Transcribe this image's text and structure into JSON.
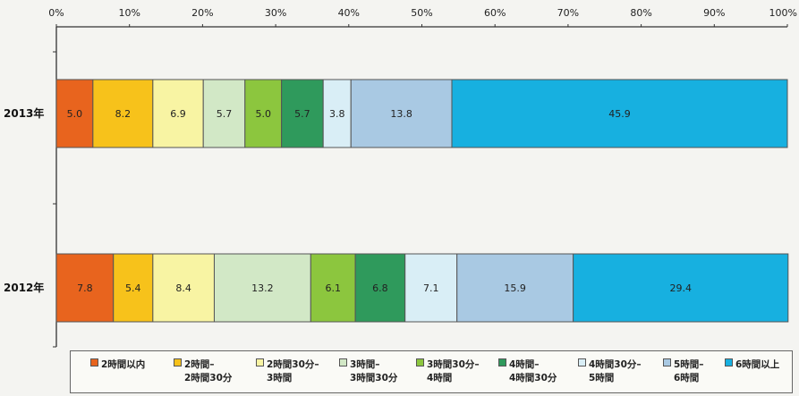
{
  "chart_data": {
    "type": "bar",
    "orientation": "horizontal",
    "stacked": true,
    "xlim": [
      0,
      100
    ],
    "x_ticks": [
      "0%",
      "10%",
      "20%",
      "30%",
      "40%",
      "50%",
      "60%",
      "70%",
      "80%",
      "90%",
      "100%"
    ],
    "categories": [
      "2013年",
      "2012年"
    ],
    "series": [
      {
        "name": "2時間以内",
        "color": "#e8641e",
        "values": [
          5.0,
          7.8
        ],
        "labels": [
          "5.0",
          "7.8"
        ]
      },
      {
        "name": "2時間–2時間30分",
        "color": "#f7c21b",
        "values": [
          8.2,
          5.4
        ],
        "labels": [
          "8.2",
          "5.4"
        ]
      },
      {
        "name": "2時間30分–3時間",
        "color": "#f8f4a3",
        "values": [
          6.9,
          8.4
        ],
        "labels": [
          "6.9",
          "8.4"
        ]
      },
      {
        "name": "3時間–3時間30分",
        "color": "#d2e8c6",
        "values": [
          5.7,
          13.2
        ],
        "labels": [
          "5.7",
          "13.2"
        ]
      },
      {
        "name": "3時間30分–4時間",
        "color": "#8cc63e",
        "values": [
          5.0,
          6.1
        ],
        "labels": [
          "5.0",
          "6.1"
        ]
      },
      {
        "name": "4時間–4時間30分",
        "color": "#2f9a5c",
        "values": [
          5.7,
          6.8
        ],
        "labels": [
          "5.7",
          "6.8"
        ]
      },
      {
        "name": "4時間30分–5時間",
        "color": "#d9eef6",
        "values": [
          3.8,
          7.1
        ],
        "labels": [
          "3.8",
          "7.1"
        ]
      },
      {
        "name": "5時間–6時間",
        "color": "#a9c9e3",
        "values": [
          13.8,
          15.9
        ],
        "labels": [
          "13.8",
          "15.9"
        ]
      },
      {
        "name": "6時間以上",
        "color": "#17b0e0",
        "values": [
          45.9,
          29.4
        ],
        "labels": [
          "45.9",
          "29.4"
        ]
      }
    ],
    "grid": false,
    "legend_position": "bottom"
  },
  "legend": [
    {
      "line1": "2時間以内",
      "line2": ""
    },
    {
      "line1": "2時間–",
      "line2": "2時間30分"
    },
    {
      "line1": "2時間30分–",
      "line2": "3時間"
    },
    {
      "line1": "3時間–",
      "line2": "3時間30分"
    },
    {
      "line1": "3時間30分–",
      "line2": "4時間"
    },
    {
      "line1": "4時間–",
      "line2": "4時間30分"
    },
    {
      "line1": "4時間30分–",
      "line2": "5時間"
    },
    {
      "line1": "5時間–",
      "line2": "6時間"
    },
    {
      "line1": "6時間以上",
      "line2": ""
    }
  ]
}
